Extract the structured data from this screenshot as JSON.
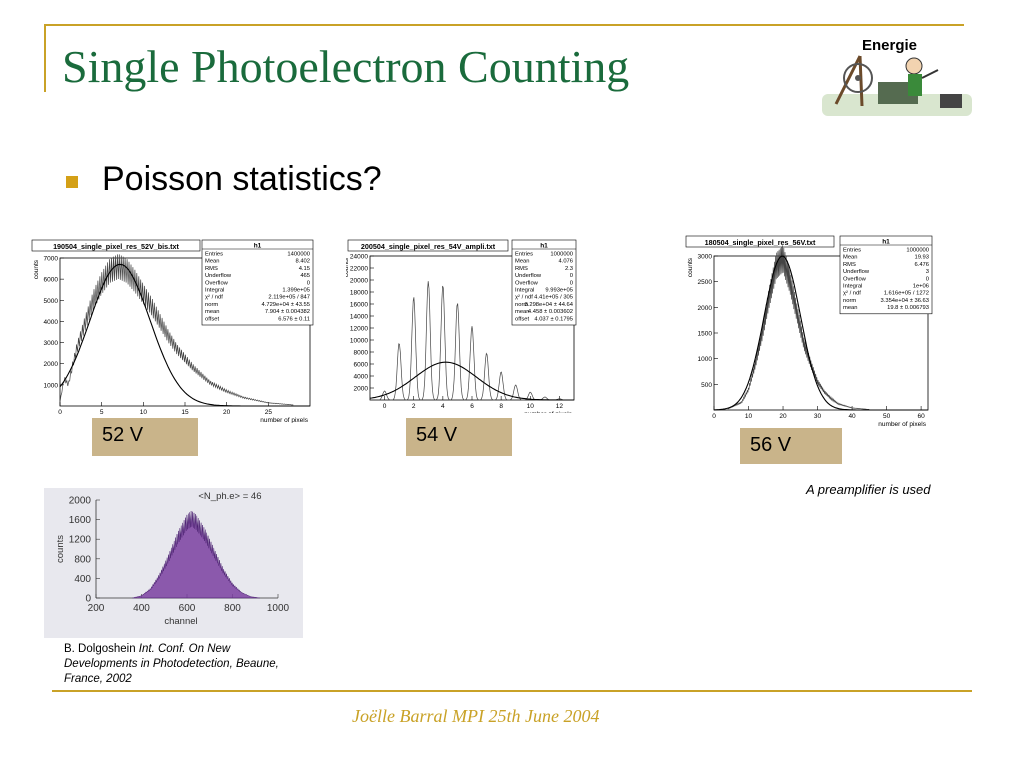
{
  "slide": {
    "title": "Single Photoelectron Counting",
    "bullet": "Poisson statistics?",
    "logo_text": "Energie",
    "labels": [
      "52 V",
      "54 V",
      "56 V"
    ],
    "note": "A preamplifier is used",
    "citation": {
      "author": "B. Dolgoshein ",
      "source": "Int. Conf. On New Developments in Photodetection, Beaune, France, 2002"
    },
    "footer": "Joëlle Barral MPI 25th June 2004"
  },
  "colors": {
    "title": "#1a6b3c",
    "accent": "#d4a017",
    "label_bg": "#c9b48a",
    "ref_fill": "#7a3fa0"
  },
  "chart_data": [
    {
      "type": "line",
      "title": "190504_single_pixel_res_52V_bis.txt",
      "xlabel": "number of pixels",
      "ylabel": "counts",
      "xlim": [
        0,
        30
      ],
      "ylim": [
        0,
        7000
      ],
      "xticks": [
        0,
        5,
        10,
        15,
        20,
        25
      ],
      "yticks": [
        1000,
        2000,
        3000,
        4000,
        5000,
        6000,
        7000
      ],
      "hist_label": "h1",
      "stats": [
        [
          "Entries",
          "1400000"
        ],
        [
          "Mean",
          "8.402"
        ],
        [
          "RMS",
          "4.15"
        ],
        [
          "Underflow",
          "465"
        ],
        [
          "Overflow",
          "0"
        ],
        [
          "Integral",
          "1.399e+05"
        ],
        [
          "χ² / ndf",
          "2.119e+05 / 847"
        ],
        [
          "norm",
          "4.729e+04 ± 43.55"
        ],
        [
          "mean",
          "7.904 ± 0.004382"
        ],
        [
          "offset",
          "6.576 ± 0.11"
        ]
      ],
      "series": [
        {
          "values": [
            [
              0,
              200
            ],
            [
              0.5,
              1300
            ],
            [
              1,
              1000
            ],
            [
              1.5,
              1900
            ],
            [
              2,
              2700
            ],
            [
              3,
              3900
            ],
            [
              4,
              5000
            ],
            [
              5,
              5800
            ],
            [
              6,
              6400
            ],
            [
              7,
              6600
            ],
            [
              8,
              6400
            ],
            [
              9,
              5900
            ],
            [
              10,
              5300
            ],
            [
              11,
              4700
            ],
            [
              12,
              4000
            ],
            [
              13,
              3300
            ],
            [
              14,
              2700
            ],
            [
              16,
              1800
            ],
            [
              18,
              1100
            ],
            [
              20,
              700
            ],
            [
              22,
              400
            ],
            [
              25,
              150
            ],
            [
              28,
              50
            ]
          ]
        }
      ],
      "fit": {
        "amplitude": 6700,
        "mean": 7.2,
        "sigma": 3.6
      }
    },
    {
      "type": "line",
      "title": "200504_single_pixel_res_54V_ampli.txt",
      "xlabel": "number of pixels",
      "ylabel": "counts",
      "xlim": [
        -1,
        13
      ],
      "ylim": [
        0,
        24000
      ],
      "xticks": [
        0,
        2,
        4,
        6,
        8,
        10,
        12
      ],
      "yticks": [
        2000,
        4000,
        6000,
        8000,
        10000,
        12000,
        14000,
        16000,
        18000,
        20000,
        22000,
        24000
      ],
      "hist_label": "h1",
      "stats": [
        [
          "Entries",
          "1000000"
        ],
        [
          "Mean",
          "4.076"
        ],
        [
          "RMS",
          "2.3"
        ],
        [
          "Underflow",
          "0"
        ],
        [
          "Overflow",
          "0"
        ],
        [
          "Integral",
          "9.993e+05"
        ],
        [
          "χ² / ndf",
          "4.41e+05 / 305"
        ],
        [
          "norm",
          "3.298e+04 ± 44.64"
        ],
        [
          "mean",
          "4.458 ± 0.003602"
        ],
        [
          "offset",
          "4.037 ± 0.1795"
        ]
      ],
      "series": [
        {
          "peaks": [
            [
              0,
              1500
            ],
            [
              1,
              9500
            ],
            [
              2,
              17200
            ],
            [
              3,
              19800
            ],
            [
              4,
              19200
            ],
            [
              5,
              16200
            ],
            [
              6,
              12300
            ],
            [
              7,
              7800
            ],
            [
              8,
              4700
            ],
            [
              9,
              2500
            ],
            [
              10,
              1300
            ],
            [
              11,
              500
            ],
            [
              12,
              200
            ]
          ]
        }
      ],
      "fit": {
        "amplitude": 6300,
        "mean": 4.2,
        "sigma": 2.1
      }
    },
    {
      "type": "line",
      "title": "180504_single_pixel_res_56V.txt",
      "xlabel": "number of pixels",
      "ylabel": "counts",
      "xlim": [
        0,
        62
      ],
      "ylim": [
        0,
        3000
      ],
      "xticks": [
        0,
        10,
        20,
        30,
        40,
        50,
        60
      ],
      "yticks": [
        500,
        1000,
        1500,
        2000,
        2500,
        3000
      ],
      "hist_label": "h1",
      "stats": [
        [
          "Entries",
          "1000000"
        ],
        [
          "Mean",
          "19.93"
        ],
        [
          "RMS",
          "6.476"
        ],
        [
          "Underflow",
          "3"
        ],
        [
          "Overflow",
          "0"
        ],
        [
          "Integral",
          "1e+06"
        ],
        [
          "χ² / ndf",
          "1.616e+05 / 1272"
        ],
        [
          "norm",
          "3.354e+04 ± 36.63"
        ],
        [
          "mean",
          "19.8 ± 0.006793"
        ]
      ],
      "series": [
        {
          "values": [
            [
              4,
              20
            ],
            [
              8,
              150
            ],
            [
              10,
              400
            ],
            [
              12,
              900
            ],
            [
              14,
              1500
            ],
            [
              16,
              2200
            ],
            [
              18,
              2800
            ],
            [
              20,
              2950
            ],
            [
              22,
              2500
            ],
            [
              24,
              1900
            ],
            [
              26,
              1300
            ],
            [
              28,
              900
            ],
            [
              30,
              550
            ],
            [
              32,
              350
            ],
            [
              34,
              220
            ],
            [
              36,
              120
            ],
            [
              40,
              40
            ],
            [
              45,
              10
            ]
          ]
        }
      ],
      "fit": {
        "amplitude": 3000,
        "mean": 19.8,
        "sigma": 5.3
      }
    },
    {
      "type": "area",
      "annotation": "<N_ph.e> = 46",
      "xlabel": "channel",
      "ylabel": "counts",
      "xlim": [
        200,
        1000
      ],
      "ylim": [
        0,
        2000
      ],
      "xticks": [
        200,
        400,
        600,
        800,
        1000
      ],
      "yticks": [
        0,
        400,
        800,
        1200,
        1600,
        2000
      ],
      "series": [
        {
          "values": [
            [
              360,
              0
            ],
            [
              400,
              50
            ],
            [
              440,
              200
            ],
            [
              480,
              500
            ],
            [
              520,
              900
            ],
            [
              560,
              1350
            ],
            [
              600,
              1700
            ],
            [
              620,
              1780
            ],
            [
              640,
              1700
            ],
            [
              680,
              1400
            ],
            [
              720,
              1000
            ],
            [
              760,
              600
            ],
            [
              800,
              300
            ],
            [
              840,
              120
            ],
            [
              880,
              30
            ],
            [
              920,
              0
            ]
          ]
        }
      ]
    }
  ]
}
